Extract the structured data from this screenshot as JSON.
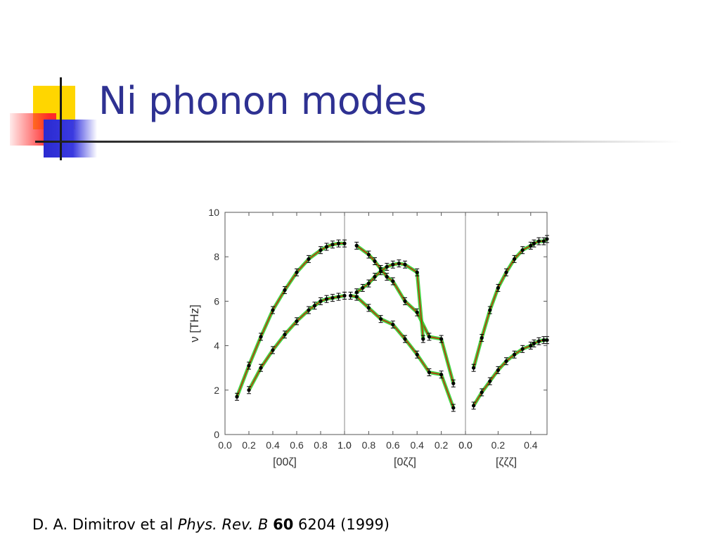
{
  "slide": {
    "title": "Ni phonon modes",
    "citation": {
      "authors": "D. A. Dimitrov et al",
      "journal": "Phys. Rev. B",
      "volume": "60",
      "rest": "6204 (1999)"
    }
  },
  "colors": {
    "title": "#2e3192",
    "deco_yellow": "#ffd600",
    "deco_red": "#ff2a2a",
    "deco_blue": "#2a2ad0",
    "band_green": "#22cc22",
    "curve_red": "#cc2200",
    "points": "#000000"
  },
  "chart_data": {
    "type": "line",
    "ylabel": "ν [THz]",
    "ylim": [
      0,
      10
    ],
    "yticks": [
      "0",
      "2",
      "4",
      "6",
      "8",
      "10"
    ],
    "grid": false,
    "panels": [
      {
        "name": "[00ζ]",
        "xlim": [
          0,
          1
        ],
        "xticks": [
          "0.0",
          "0.2",
          "0.4",
          "0.6",
          "0.8",
          "1.0"
        ],
        "series": [
          {
            "x": [
              0.1,
              0.2,
              0.3,
              0.4,
              0.5,
              0.6,
              0.7,
              0.8,
              0.85,
              0.9,
              0.95,
              1.0
            ],
            "values": [
              1.7,
              3.1,
              4.4,
              5.6,
              6.5,
              7.3,
              7.9,
              8.3,
              8.45,
              8.55,
              8.6,
              8.6
            ]
          },
          {
            "x": [
              0.2,
              0.3,
              0.4,
              0.5,
              0.6,
              0.7,
              0.75,
              0.8,
              0.85,
              0.9,
              0.95,
              1.0
            ],
            "values": [
              2.0,
              3.0,
              3.8,
              4.5,
              5.1,
              5.6,
              5.8,
              6.0,
              6.1,
              6.15,
              6.2,
              6.25
            ]
          }
        ]
      },
      {
        "name": "[0ζζ]",
        "xlim": [
          1,
          0
        ],
        "xticks": [
          "1.0",
          "0.8",
          "0.6",
          "0.4",
          "0.2",
          "0.0"
        ],
        "series": [
          {
            "x": [
              0.9,
              0.8,
              0.75,
              0.7,
              0.65,
              0.6,
              0.5,
              0.4,
              0.3,
              0.2,
              0.1
            ],
            "values": [
              8.5,
              8.1,
              7.8,
              7.45,
              7.1,
              6.9,
              6.0,
              5.5,
              4.4,
              4.3,
              2.3
            ]
          },
          {
            "x": [
              0.9,
              0.85,
              0.8,
              0.75,
              0.7,
              0.65,
              0.6,
              0.55,
              0.5,
              0.4,
              0.35
            ],
            "values": [
              6.4,
              6.6,
              6.8,
              7.1,
              7.35,
              7.55,
              7.65,
              7.7,
              7.65,
              7.3,
              4.3
            ]
          },
          {
            "x": [
              0.95,
              0.9,
              0.8,
              0.7,
              0.6,
              0.5,
              0.4,
              0.3,
              0.2,
              0.1
            ],
            "values": [
              6.25,
              6.2,
              5.7,
              5.2,
              4.95,
              4.3,
              3.6,
              2.8,
              2.7,
              1.2
            ]
          }
        ]
      },
      {
        "name": "[ζζζ]",
        "xlim": [
          0,
          0.5
        ],
        "xticks": [
          "0.0",
          "0.2",
          "0.4"
        ],
        "series": [
          {
            "x": [
              0.05,
              0.1,
              0.15,
              0.2,
              0.25,
              0.3,
              0.35,
              0.4,
              0.42,
              0.45,
              0.48,
              0.5
            ],
            "values": [
              3.0,
              4.35,
              5.6,
              6.6,
              7.3,
              7.9,
              8.3,
              8.5,
              8.6,
              8.7,
              8.7,
              8.8
            ]
          },
          {
            "x": [
              0.05,
              0.1,
              0.15,
              0.2,
              0.25,
              0.3,
              0.35,
              0.4,
              0.42,
              0.45,
              0.48,
              0.5
            ],
            "values": [
              1.3,
              1.9,
              2.4,
              2.9,
              3.3,
              3.6,
              3.85,
              4.0,
              4.1,
              4.2,
              4.25,
              4.25
            ]
          }
        ]
      }
    ]
  }
}
